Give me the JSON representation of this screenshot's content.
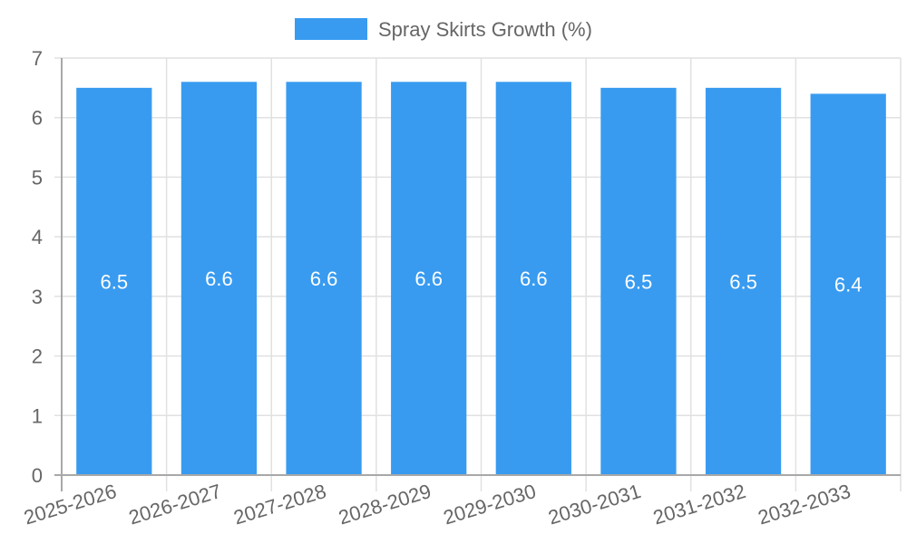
{
  "chart_data": {
    "type": "bar",
    "title": "",
    "legend": [
      {
        "label": "Spray Skirts Growth (%)",
        "color": "#389bf0"
      }
    ],
    "categories": [
      "2025-2026",
      "2026-2027",
      "2027-2028",
      "2028-2029",
      "2029-2030",
      "2030-2031",
      "2031-2032",
      "2032-2033"
    ],
    "series": [
      {
        "name": "Spray Skirts Growth (%)",
        "values": [
          6.5,
          6.6,
          6.6,
          6.6,
          6.6,
          6.5,
          6.5,
          6.4
        ]
      }
    ],
    "data_labels": [
      "6.5",
      "6.6",
      "6.6",
      "6.6",
      "6.6",
      "6.5",
      "6.5",
      "6.4"
    ],
    "xlabel": "",
    "ylabel": "",
    "ylim": [
      0,
      7
    ],
    "yticks": [
      0,
      1,
      2,
      3,
      4,
      5,
      6,
      7
    ],
    "grid": true,
    "legend_position": "top"
  }
}
